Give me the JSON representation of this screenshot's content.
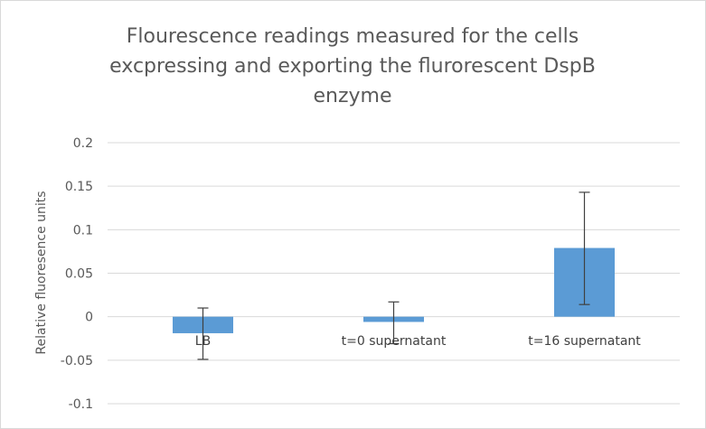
{
  "chart_data": {
    "type": "bar",
    "title": "Flourescence readings measured for the cells excpressing and exporting the flurorescent DspB enzyme",
    "title_lines": [
      "Flourescence readings measured for the cells",
      "excpressing and exporting the flurorescent DspB",
      "enzyme"
    ],
    "xlabel": "",
    "ylabel": "Relative fluoresence units",
    "categories": [
      "LB",
      "t=0 supernatant",
      "t=16 supernatant"
    ],
    "values": [
      -0.019,
      -0.006,
      0.079
    ],
    "error_low": [
      -0.049,
      -0.031,
      0.014
    ],
    "error_high": [
      0.01,
      0.017,
      0.143
    ],
    "ylim": [
      -0.1,
      0.2
    ],
    "yticks": [
      0.2,
      0.15,
      0.1,
      0.05,
      0,
      -0.05,
      -0.1
    ],
    "ytick_labels": [
      "0.2",
      "0.15",
      "0.1",
      "0.05",
      "0",
      "-0.05",
      "-0.1"
    ],
    "grid": true,
    "legend": "none",
    "colors": {
      "bar": "#5b9bd5",
      "grid": "#d9d9d9",
      "error": "#404040"
    }
  }
}
